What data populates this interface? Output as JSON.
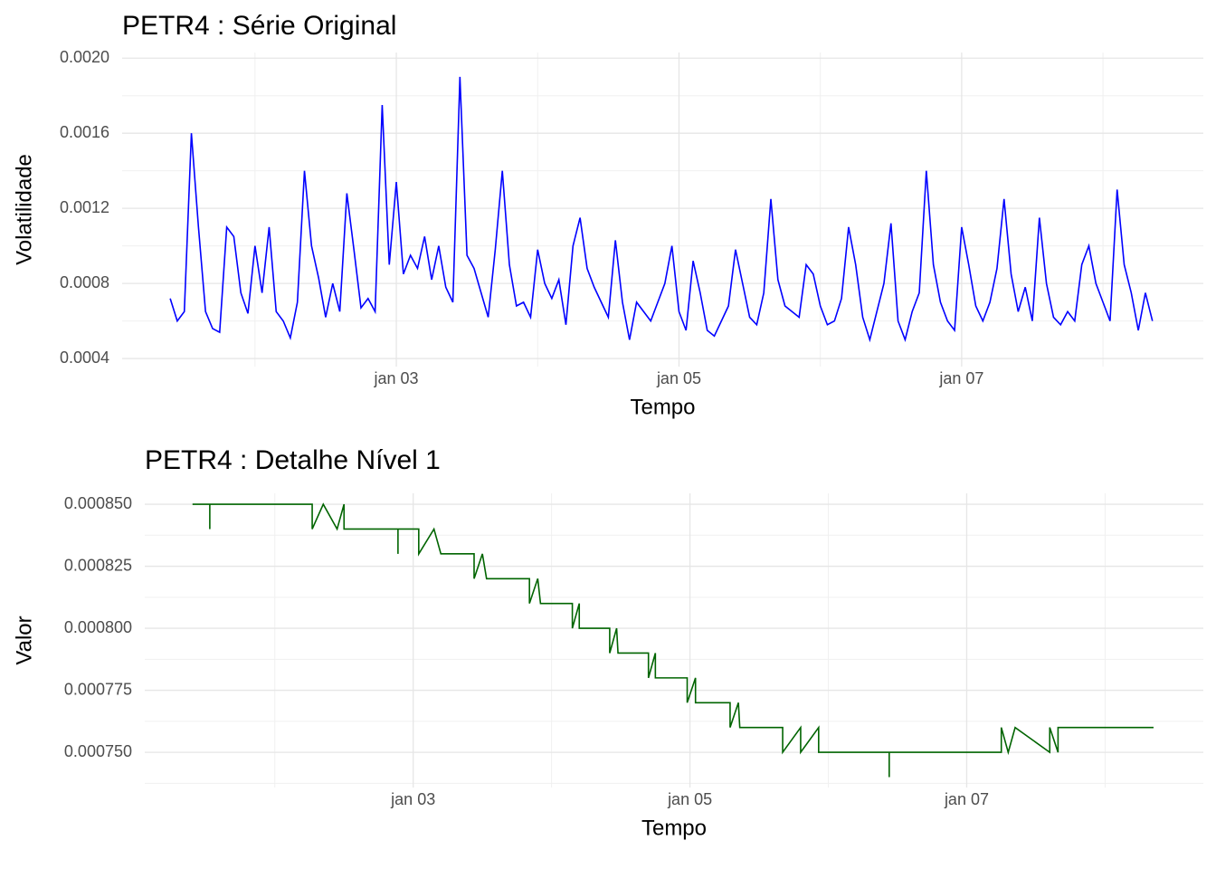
{
  "chart_data": [
    {
      "type": "line",
      "title": "PETR4 : Série Original",
      "x_label": "Tempo",
      "y_label": "Volatilidade",
      "color": "#0000ff",
      "grid": true,
      "xlim": [
        1.06,
        8.71
      ],
      "xticks": [
        {
          "value": 3,
          "label": "jan 03"
        },
        {
          "value": 5,
          "label": "jan 05"
        },
        {
          "value": 7,
          "label": "jan 07"
        }
      ],
      "ylim": [
        0.000357,
        0.00203
      ],
      "yticks": [
        {
          "value": 0.0004,
          "label": "0.0004"
        },
        {
          "value": 0.0008,
          "label": "0.0008"
        },
        {
          "value": 0.0012,
          "label": "0.0012"
        },
        {
          "value": 0.0016,
          "label": "0.0016"
        },
        {
          "value": 0.002,
          "label": "0.0020"
        }
      ],
      "x": [
        1.4,
        1.45,
        1.5,
        1.55,
        1.6,
        1.65,
        1.7,
        1.75,
        1.8,
        1.85,
        1.9,
        1.95,
        2,
        2.05,
        2.1,
        2.15,
        2.2,
        2.25,
        2.3,
        2.35,
        2.4,
        2.45,
        2.5,
        2.55,
        2.6,
        2.65,
        2.7,
        2.75,
        2.8,
        2.85,
        2.9,
        2.95,
        3,
        3.05,
        3.1,
        3.15,
        3.2,
        3.25,
        3.3,
        3.35,
        3.4,
        3.45,
        3.5,
        3.55,
        3.6,
        3.65,
        3.7,
        3.75,
        3.8,
        3.85,
        3.9,
        3.95,
        4,
        4.05,
        4.1,
        4.15,
        4.2,
        4.25,
        4.3,
        4.35,
        4.4,
        4.45,
        4.5,
        4.55,
        4.6,
        4.65,
        4.7,
        4.75,
        4.8,
        4.85,
        4.9,
        4.95,
        5,
        5.05,
        5.1,
        5.15,
        5.2,
        5.25,
        5.3,
        5.35,
        5.4,
        5.45,
        5.5,
        5.55,
        5.6,
        5.65,
        5.7,
        5.75,
        5.8,
        5.85,
        5.9,
        5.95,
        6,
        6.05,
        6.1,
        6.15,
        6.2,
        6.25,
        6.3,
        6.35,
        6.4,
        6.45,
        6.5,
        6.55,
        6.6,
        6.65,
        6.7,
        6.75,
        6.8,
        6.85,
        6.9,
        6.95,
        7,
        7.05,
        7.1,
        7.15,
        7.2,
        7.25,
        7.3,
        7.35,
        7.4,
        7.45,
        7.5,
        7.55,
        7.6,
        7.65,
        7.7,
        7.75,
        7.8,
        7.85,
        7.9,
        7.95,
        8,
        8.05,
        8.1,
        8.15,
        8.2,
        8.25,
        8.3,
        8.35
      ],
      "values": [
        0.00072,
        0.0006,
        0.00065,
        0.0016,
        0.0011,
        0.00065,
        0.00056,
        0.00054,
        0.0011,
        0.00105,
        0.00075,
        0.00064,
        0.001,
        0.00075,
        0.0011,
        0.00065,
        0.0006,
        0.00051,
        0.0007,
        0.0014,
        0.001,
        0.00083,
        0.00062,
        0.0008,
        0.00065,
        0.00128,
        0.00098,
        0.00067,
        0.00072,
        0.00065,
        0.00175,
        0.0009,
        0.00134,
        0.00085,
        0.00095,
        0.00088,
        0.00105,
        0.00082,
        0.001,
        0.00078,
        0.0007,
        0.0019,
        0.00095,
        0.00088,
        0.00075,
        0.00062,
        0.00098,
        0.0014,
        0.0009,
        0.00068,
        0.0007,
        0.00062,
        0.00098,
        0.0008,
        0.00072,
        0.00082,
        0.00058,
        0.001,
        0.00115,
        0.00088,
        0.00078,
        0.0007,
        0.00062,
        0.00103,
        0.0007,
        0.0005,
        0.0007,
        0.00065,
        0.0006,
        0.0007,
        0.0008,
        0.001,
        0.00065,
        0.00055,
        0.00092,
        0.00075,
        0.00055,
        0.00052,
        0.0006,
        0.00068,
        0.00098,
        0.0008,
        0.00062,
        0.00058,
        0.00075,
        0.00125,
        0.00082,
        0.00068,
        0.00065,
        0.00062,
        0.0009,
        0.00085,
        0.00068,
        0.00058,
        0.0006,
        0.00072,
        0.0011,
        0.0009,
        0.00062,
        0.0005,
        0.00065,
        0.0008,
        0.00112,
        0.0006,
        0.0005,
        0.00065,
        0.00075,
        0.0014,
        0.0009,
        0.0007,
        0.0006,
        0.00055,
        0.0011,
        0.0009,
        0.00068,
        0.0006,
        0.0007,
        0.00088,
        0.00125,
        0.00085,
        0.00065,
        0.00078,
        0.0006,
        0.00115,
        0.0008,
        0.00062,
        0.00058,
        0.00065,
        0.0006,
        0.0009,
        0.001,
        0.0008,
        0.0007,
        0.0006,
        0.0013,
        0.0009,
        0.00075,
        0.00055,
        0.00075,
        0.0006
      ]
    },
    {
      "type": "line",
      "title": "PETR4 : Detalhe Nível 1",
      "x_label": "Tempo",
      "y_label": "Valor",
      "color": "#006400",
      "grid": true,
      "xlim": [
        1.06,
        8.71
      ],
      "xticks": [
        {
          "value": 3,
          "label": "jan 03"
        },
        {
          "value": 5,
          "label": "jan 05"
        },
        {
          "value": 7,
          "label": "jan 07"
        }
      ],
      "ylim": [
        0.0007358,
        0.0008544
      ],
      "yticks": [
        {
          "value": 0.00075,
          "label": "0.000750"
        },
        {
          "value": 0.000775,
          "label": "0.000775"
        },
        {
          "value": 0.0008,
          "label": "0.000800"
        },
        {
          "value": 0.000825,
          "label": "0.000825"
        },
        {
          "value": 0.00085,
          "label": "0.000850"
        }
      ],
      "x": [
        1.405,
        1.53,
        1.53,
        1.53,
        2.27,
        2.27,
        2.35,
        2.45,
        2.5,
        2.5,
        2.89,
        2.89,
        2.89,
        3.04,
        3.04,
        3.15,
        3.2,
        3.44,
        3.44,
        3.5,
        3.53,
        3.84,
        3.84,
        3.9,
        3.92,
        4.15,
        4.15,
        4.2,
        4.2,
        4.42,
        4.42,
        4.47,
        4.48,
        4.7,
        4.7,
        4.75,
        4.75,
        4.98,
        4.98,
        5.04,
        5.04,
        5.29,
        5.29,
        5.35,
        5.36,
        5.67,
        5.67,
        5.8,
        5.8,
        5.93,
        5.93,
        6.44,
        6.44,
        6.44,
        7.25,
        7.25,
        7.3,
        7.35,
        7.6,
        7.6,
        7.66,
        7.66,
        8.35
      ],
      "values": [
        0.00085,
        0.00085,
        0.00084,
        0.00085,
        0.00085,
        0.00084,
        0.00085,
        0.00084,
        0.00085,
        0.00084,
        0.00084,
        0.00083,
        0.00084,
        0.00084,
        0.00083,
        0.00084,
        0.00083,
        0.00083,
        0.00082,
        0.00083,
        0.00082,
        0.00082,
        0.00081,
        0.00082,
        0.00081,
        0.00081,
        0.0008,
        0.00081,
        0.0008,
        0.0008,
        0.00079,
        0.0008,
        0.00079,
        0.00079,
        0.00078,
        0.00079,
        0.00078,
        0.00078,
        0.00077,
        0.00078,
        0.00077,
        0.00077,
        0.00076,
        0.00077,
        0.00076,
        0.00076,
        0.00075,
        0.00076,
        0.00075,
        0.00076,
        0.00075,
        0.00075,
        0.00074,
        0.00075,
        0.00075,
        0.00076,
        0.00075,
        0.00076,
        0.00075,
        0.00076,
        0.00075,
        0.00076,
        0.00076
      ]
    }
  ]
}
